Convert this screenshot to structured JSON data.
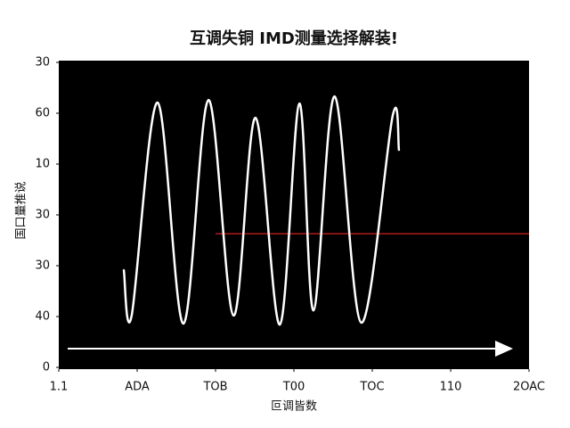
{
  "chart_data": {
    "type": "line",
    "title": "互调失铜 IMD测量选择解装!",
    "xlabel": "叵调皆数",
    "ylabel": "国口量推说",
    "xlim": [
      0,
      6
    ],
    "xticks": [
      {
        "value": 0,
        "label": "1.1"
      },
      {
        "value": 1,
        "label": "ADA"
      },
      {
        "value": 2,
        "label": "TOB"
      },
      {
        "value": 3,
        "label": "T00"
      },
      {
        "value": 4,
        "label": "TOC"
      },
      {
        "value": 5,
        "label": "110"
      },
      {
        "value": 6,
        "label": "2OAC"
      }
    ],
    "ylim": [
      0,
      6
    ],
    "yticks": [
      {
        "value": 0,
        "label": "0"
      },
      {
        "value": 1,
        "label": "40"
      },
      {
        "value": 2,
        "label": "30"
      },
      {
        "value": 3,
        "label": "30"
      },
      {
        "value": 4,
        "label": "10"
      },
      {
        "value": 5,
        "label": "60"
      },
      {
        "value": 6,
        "label": "30"
      }
    ],
    "background": "#000000",
    "series": [
      {
        "color": "#ffffff",
        "x": [
          0.83,
          0.93,
          1.26,
          1.59,
          1.91,
          2.23,
          2.51,
          2.82,
          3.07,
          3.25,
          3.52,
          3.86,
          4.26,
          4.34
        ],
        "values": [
          1.91,
          1.02,
          5.21,
          0.86,
          5.26,
          1.02,
          4.91,
          0.84,
          5.19,
          1.12,
          5.33,
          0.88,
          4.95,
          4.28
        ]
      }
    ],
    "hline": {
      "value": 2.63,
      "color": "#d42020"
    }
  }
}
